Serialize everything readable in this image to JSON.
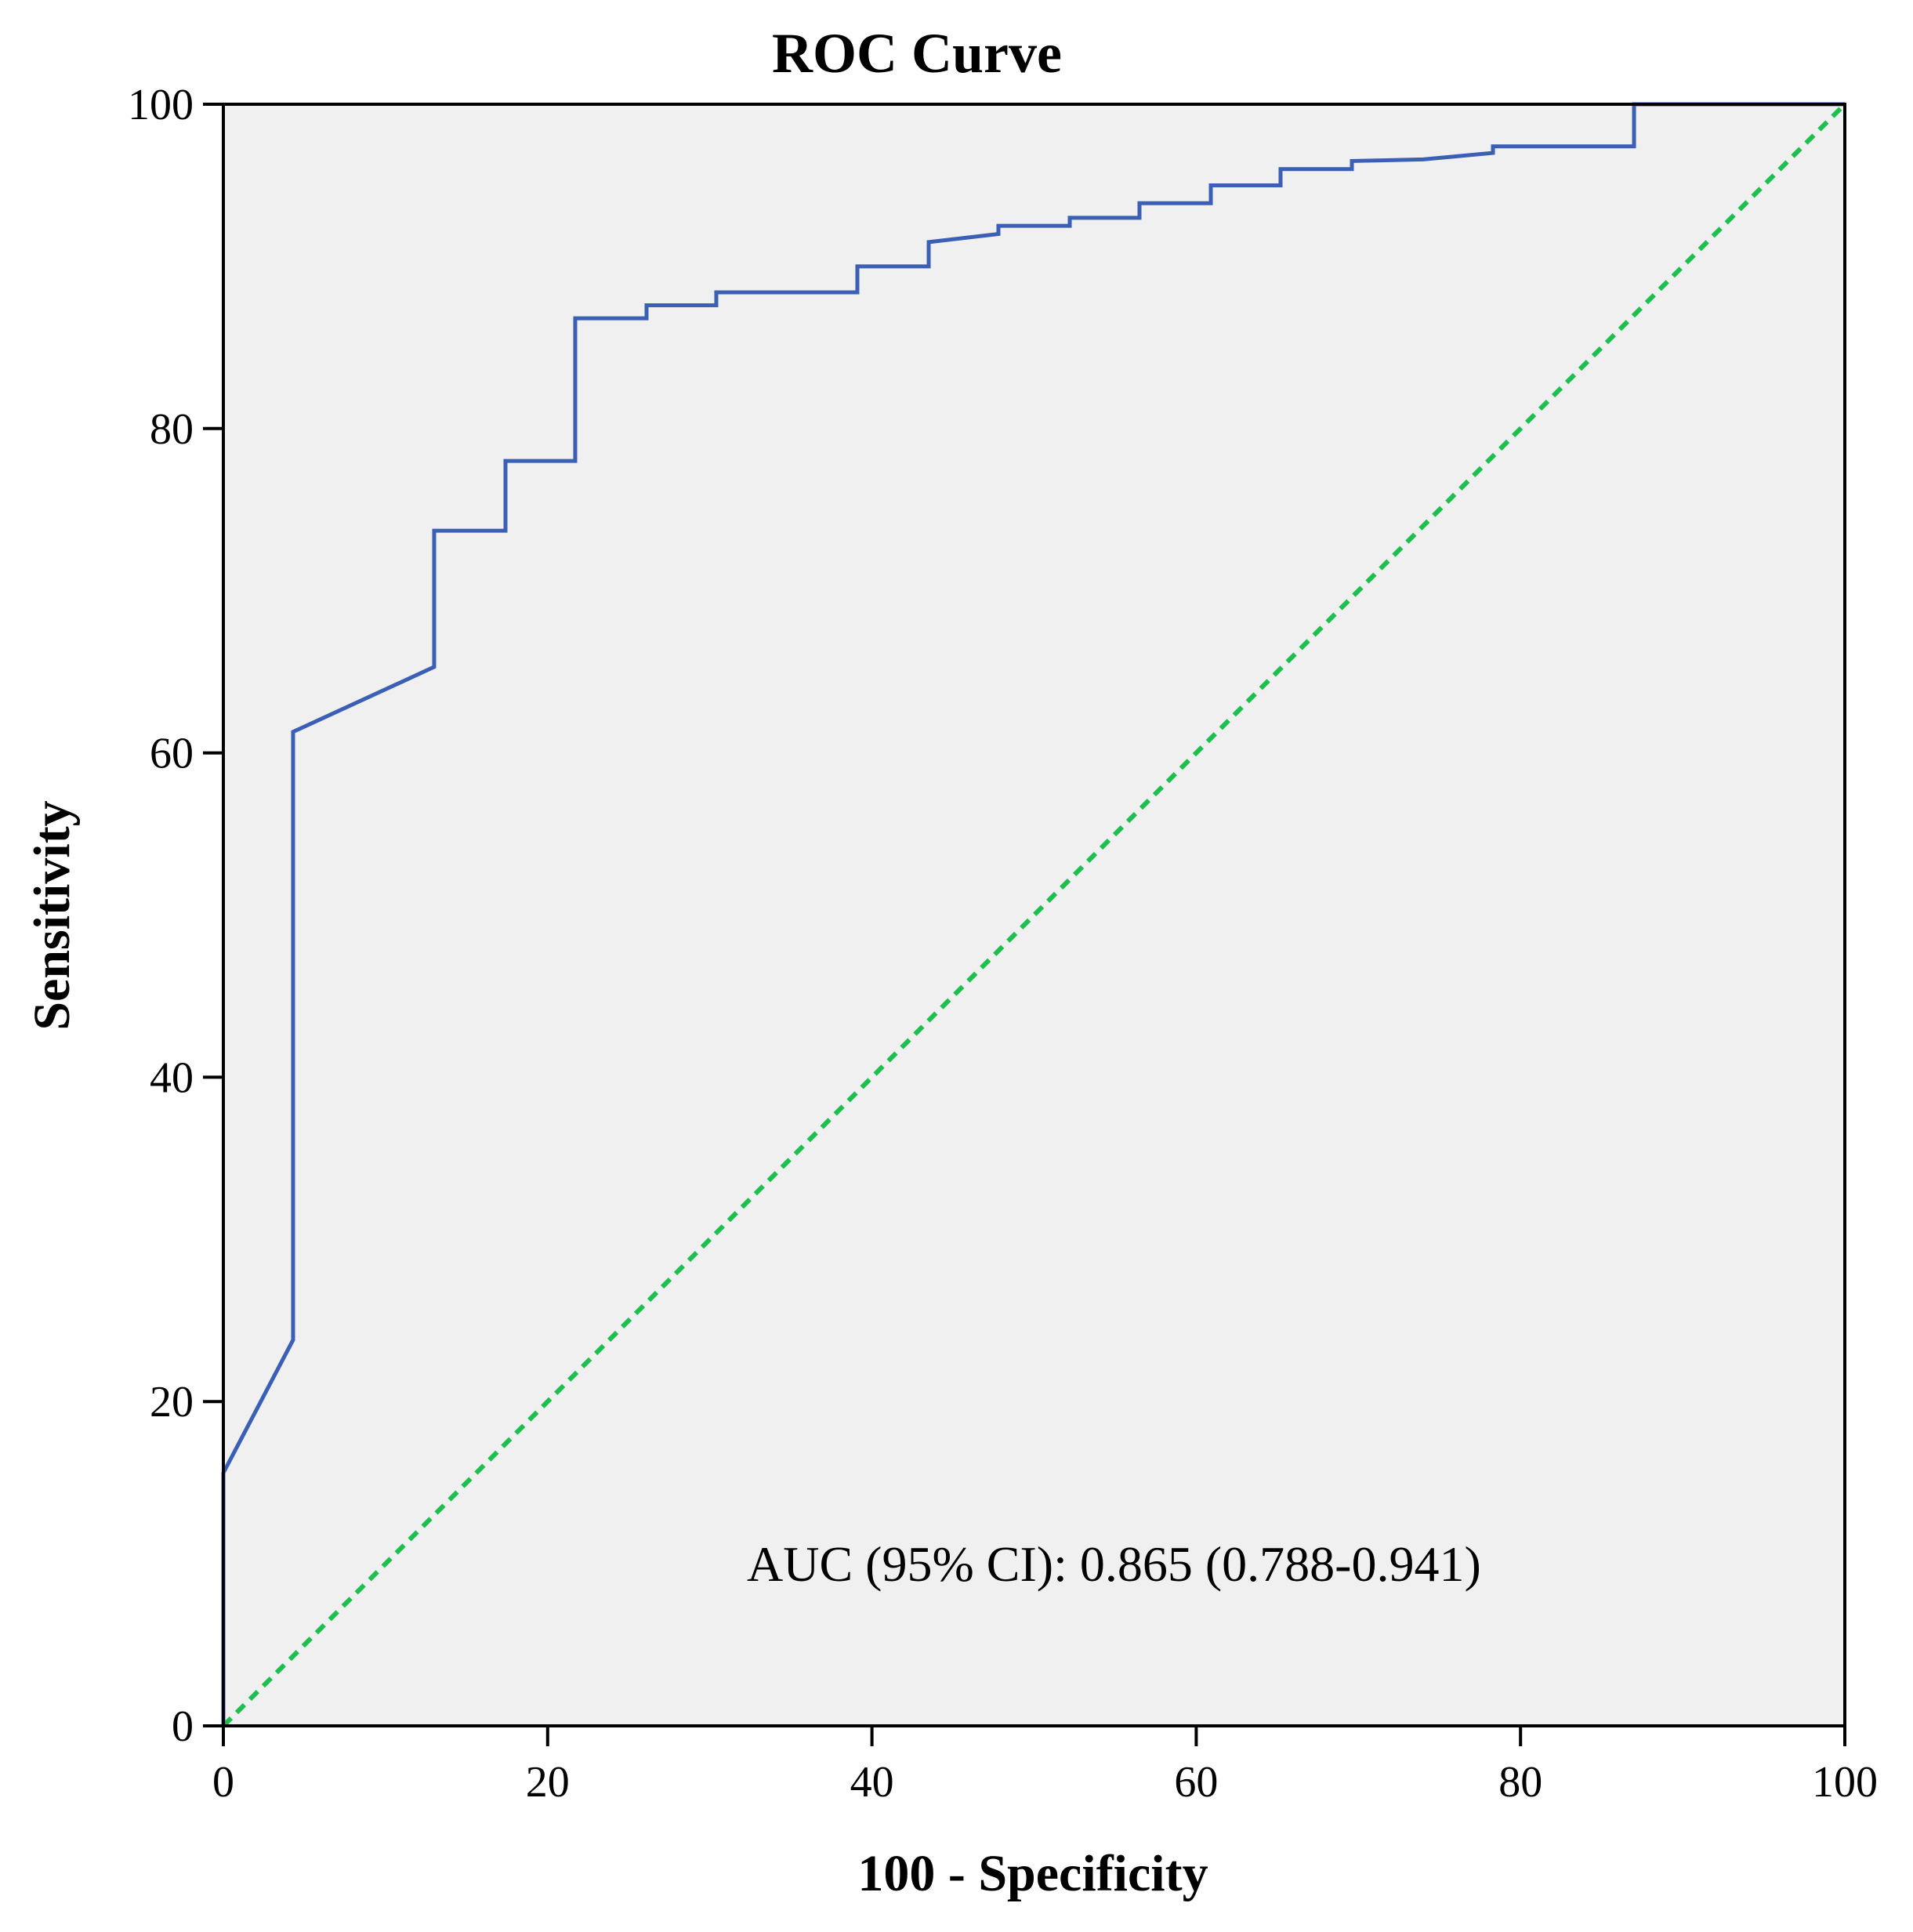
{
  "chart_data": {
    "type": "line",
    "title": "ROC Curve",
    "xlabel": "100 - Specificity",
    "ylabel": "Sensitivity",
    "xlim": [
      0,
      100
    ],
    "ylim": [
      0,
      100
    ],
    "xticks": [
      0,
      20,
      40,
      60,
      80,
      100
    ],
    "yticks": [
      0,
      20,
      40,
      60,
      80,
      100
    ],
    "grid": false,
    "annotation": "AUC (95% CI): 0.865 (0.788-0.941)",
    "colors": {
      "plot_background": "#f0f0f0",
      "roc_curve": "#3a5fb5",
      "reference_line": "#1dbf4f",
      "axis": "#000000"
    },
    "series": [
      {
        "name": "ROC curve",
        "x": [
          0,
          0,
          4.3,
          4.3,
          13,
          13,
          17.4,
          17.4,
          21.7,
          21.7,
          26.1,
          26.1,
          30.4,
          30.4,
          39.1,
          39.1,
          43.5,
          43.5,
          47.8,
          47.8,
          52.2,
          52.2,
          56.5,
          56.5,
          60.9,
          60.9,
          65.2,
          65.2,
          69.6,
          69.6,
          74,
          78.3,
          78.3,
          87,
          87,
          100
        ],
        "y": [
          0,
          15.6,
          23.8,
          61.3,
          65.3,
          73.7,
          73.7,
          78,
          78,
          86.8,
          86.8,
          87.6,
          87.6,
          88.4,
          88.4,
          90,
          90,
          91.5,
          92,
          92.5,
          92.5,
          93,
          93,
          93.9,
          93.9,
          95,
          95,
          96,
          96,
          96.5,
          96.6,
          97,
          97.4,
          97.4,
          100,
          100
        ]
      },
      {
        "name": "Reference line",
        "x": [
          0,
          100
        ],
        "y": [
          0,
          100
        ]
      }
    ]
  }
}
